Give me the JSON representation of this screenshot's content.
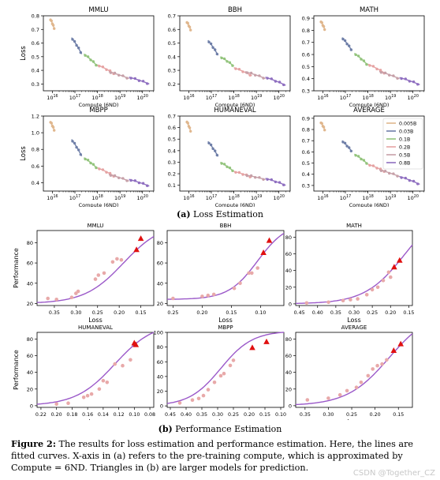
{
  "chart_data": {
    "loss_estimation": {
      "type": "line",
      "sublabel_tag": "(a)",
      "sublabel_text": "Loss Estimation",
      "xlabel": "Compute (6ND)",
      "ylabel": "Loss",
      "x_scale": "log",
      "legend": {
        "placement": "right",
        "entries": [
          {
            "name": "0.005B",
            "color": "#e0b78e"
          },
          {
            "name": "0.03B",
            "color": "#6f7fa8"
          },
          {
            "name": "0.1B",
            "color": "#93c47d"
          },
          {
            "name": "0.2B",
            "color": "#e6a3a3"
          },
          {
            "name": "0.5B",
            "color": "#c6a0a8"
          },
          {
            "name": "0.8B",
            "color": "#8f6fc0"
          }
        ]
      },
      "panels": [
        {
          "title": "MMLU",
          "ylim": [
            0.25,
            0.8
          ],
          "yticks": [
            "0.3",
            "0.4",
            "0.5",
            "0.6",
            "0.7",
            "0.8"
          ],
          "ytick_values": [
            0.3,
            0.4,
            0.5,
            0.6,
            0.7,
            0.8
          ],
          "segments": [
            [
              15.9,
              16.1,
              0.78,
              0.7
            ],
            [
              16.85,
              17.3,
              0.64,
              0.52
            ],
            [
              17.4,
              18.0,
              0.52,
              0.43
            ],
            [
              18.0,
              18.8,
              0.44,
              0.37
            ],
            [
              18.5,
              19.4,
              0.39,
              0.34
            ],
            [
              19.4,
              20.3,
              0.35,
              0.3
            ]
          ]
        },
        {
          "title": "BBH",
          "ylim": [
            0.15,
            0.7
          ],
          "yticks": [
            "0.2",
            "0.3",
            "0.4",
            "0.5",
            "0.6",
            "0.7"
          ],
          "ytick_values": [
            0.2,
            0.3,
            0.4,
            0.5,
            0.6,
            0.7
          ],
          "segments": [
            [
              15.9,
              16.1,
              0.66,
              0.59
            ],
            [
              16.85,
              17.3,
              0.52,
              0.41
            ],
            [
              17.4,
              18.0,
              0.4,
              0.33
            ],
            [
              18.0,
              18.8,
              0.32,
              0.26
            ],
            [
              18.5,
              19.4,
              0.29,
              0.24
            ],
            [
              19.4,
              20.3,
              0.25,
              0.19
            ]
          ]
        },
        {
          "title": "MATH",
          "ylim": [
            0.3,
            0.92
          ],
          "yticks": [
            "0.3",
            "0.4",
            "0.5",
            "0.6",
            "0.7",
            "0.8",
            "0.9"
          ],
          "ytick_values": [
            0.3,
            0.4,
            0.5,
            0.6,
            0.7,
            0.8,
            0.9
          ],
          "segments": [
            [
              15.9,
              16.1,
              0.88,
              0.8
            ],
            [
              16.85,
              17.3,
              0.74,
              0.63
            ],
            [
              17.4,
              18.0,
              0.61,
              0.51
            ],
            [
              18.0,
              18.8,
              0.52,
              0.44
            ],
            [
              18.5,
              19.4,
              0.46,
              0.4
            ],
            [
              19.4,
              20.3,
              0.41,
              0.35
            ]
          ]
        },
        {
          "title": "MBPP",
          "ylim": [
            0.3,
            1.2
          ],
          "yticks": [
            "0.4",
            "0.6",
            "0.8",
            "1.0",
            "1.2"
          ],
          "ytick_values": [
            0.4,
            0.6,
            0.8,
            1.0,
            1.2
          ],
          "segments": [
            [
              15.9,
              16.1,
              1.14,
              1.02
            ],
            [
              16.85,
              17.3,
              0.92,
              0.72
            ],
            [
              17.4,
              18.0,
              0.7,
              0.57
            ],
            [
              18.0,
              18.8,
              0.58,
              0.47
            ],
            [
              18.5,
              19.4,
              0.5,
              0.42
            ],
            [
              19.4,
              20.3,
              0.44,
              0.36
            ]
          ]
        },
        {
          "title": "HUMANEVAL",
          "ylim": [
            0.05,
            0.7
          ],
          "yticks": [
            "0.1",
            "0.2",
            "0.3",
            "0.4",
            "0.5",
            "0.6",
            "0.7"
          ],
          "ytick_values": [
            0.1,
            0.2,
            0.3,
            0.4,
            0.5,
            0.6,
            0.7
          ],
          "segments": [
            [
              15.9,
              16.1,
              0.66,
              0.56
            ],
            [
              16.85,
              17.3,
              0.48,
              0.35
            ],
            [
              17.4,
              18.0,
              0.3,
              0.22
            ],
            [
              18.0,
              18.8,
              0.22,
              0.17
            ],
            [
              18.5,
              19.4,
              0.19,
              0.15
            ],
            [
              19.4,
              20.3,
              0.16,
              0.1
            ]
          ]
        },
        {
          "title": "AVERAGE",
          "ylim": [
            0.25,
            0.92
          ],
          "yticks": [
            "0.3",
            "0.4",
            "0.5",
            "0.6",
            "0.7",
            "0.8",
            "0.9"
          ],
          "ytick_values": [
            0.3,
            0.4,
            0.5,
            0.6,
            0.7,
            0.8,
            0.9
          ],
          "segments": [
            [
              15.9,
              16.1,
              0.87,
              0.79
            ],
            [
              16.85,
              17.3,
              0.7,
              0.6
            ],
            [
              17.4,
              18.0,
              0.58,
              0.49
            ],
            [
              18.0,
              18.8,
              0.49,
              0.42
            ],
            [
              18.5,
              19.4,
              0.44,
              0.38
            ],
            [
              19.4,
              20.3,
              0.38,
              0.31
            ]
          ]
        }
      ],
      "xticks": [
        {
          "value": 16,
          "base": "10",
          "exp": "16"
        },
        {
          "value": 17,
          "base": "10",
          "exp": "17"
        },
        {
          "value": 18,
          "base": "10",
          "exp": "18"
        },
        {
          "value": 19,
          "base": "10",
          "exp": "19"
        },
        {
          "value": 20,
          "base": "10",
          "exp": "20"
        }
      ],
      "xlim": [
        15.6,
        20.5
      ]
    },
    "performance_estimation": {
      "type": "scatter",
      "sublabel_tag": "(b)",
      "sublabel_text": "Performance Estimation",
      "xlabel": "Loss",
      "ylabel": "Performance",
      "x_inverted": true,
      "fit_color": "#9b59c9",
      "point_color": "#e8a9a9",
      "triangle_color": "#e01010",
      "panels": [
        {
          "title": "MMLU",
          "xlim": [
            0.39,
            0.12
          ],
          "ylim": [
            18,
            92
          ],
          "xticks": [
            0.35,
            0.3,
            0.25,
            0.2,
            0.15
          ],
          "xtick_labels": [
            "0.35",
            "0.30",
            "0.25",
            "0.20",
            "0.15"
          ],
          "yticks": [
            20,
            40,
            60,
            80
          ],
          "ytick_labels": [
            "20",
            "40",
            "60",
            "80"
          ],
          "fit": {
            "base": 20,
            "top": 100,
            "mid": 0.19,
            "scale": 0.045
          },
          "points": [
            [
              0.365,
              25
            ],
            [
              0.345,
              24
            ],
            [
              0.31,
              26
            ],
            [
              0.3,
              30
            ],
            [
              0.295,
              32
            ],
            [
              0.255,
              44
            ],
            [
              0.248,
              48
            ],
            [
              0.235,
              50
            ],
            [
              0.215,
              61
            ],
            [
              0.205,
              64
            ],
            [
              0.195,
              63
            ]
          ],
          "triangles": [
            [
              0.16,
              73
            ],
            [
              0.15,
              84
            ]
          ]
        },
        {
          "title": "BBH",
          "xlim": [
            0.26,
            0.06
          ],
          "ylim": [
            18,
            92
          ],
          "xticks": [
            0.25,
            0.2,
            0.15,
            0.1
          ],
          "xtick_labels": [
            "0.25",
            "0.20",
            "0.15",
            "0.10"
          ],
          "yticks": [
            20,
            40,
            60,
            80
          ],
          "ytick_labels": [
            "20",
            "40",
            "60",
            "80"
          ],
          "fit": {
            "base": 24,
            "top": 100,
            "mid": 0.105,
            "scale": 0.025
          },
          "points": [
            [
              0.25,
              25
            ],
            [
              0.2,
              27
            ],
            [
              0.19,
              28
            ],
            [
              0.18,
              29
            ],
            [
              0.145,
              35
            ],
            [
              0.135,
              40
            ],
            [
              0.12,
              50
            ],
            [
              0.115,
              50
            ],
            [
              0.105,
              55
            ]
          ],
          "triangles": [
            [
              0.095,
              70
            ],
            [
              0.085,
              82
            ]
          ]
        },
        {
          "title": "MATH",
          "xlim": [
            0.46,
            0.14
          ],
          "ylim": [
            -2,
            88
          ],
          "xticks": [
            0.45,
            0.4,
            0.35,
            0.3,
            0.25,
            0.2,
            0.15
          ],
          "xtick_labels": [
            "0.45",
            "0.40",
            "0.35",
            "0.30",
            "0.25",
            "0.20",
            "0.15"
          ],
          "yticks": [
            0,
            20,
            40,
            60,
            80
          ],
          "ytick_labels": [
            "0",
            "20",
            "40",
            "60",
            "80"
          ],
          "fit": {
            "base": 0,
            "top": 120,
            "mid": 0.16,
            "scale": 0.055
          },
          "points": [
            [
              0.43,
              1
            ],
            [
              0.37,
              2
            ],
            [
              0.33,
              4
            ],
            [
              0.31,
              5
            ],
            [
              0.29,
              6
            ],
            [
              0.265,
              11
            ],
            [
              0.25,
              17
            ],
            [
              0.235,
              20
            ],
            [
              0.22,
              28
            ],
            [
              0.205,
              38
            ],
            [
              0.2,
              32
            ]
          ],
          "triangles": [
            [
              0.19,
              44
            ],
            [
              0.175,
              52
            ]
          ]
        },
        {
          "title": "HUMANEVAL",
          "xlim": [
            0.225,
            0.075
          ],
          "ylim": [
            -2,
            88
          ],
          "xticks": [
            0.22,
            0.2,
            0.18,
            0.16,
            0.14,
            0.12,
            0.1,
            0.08
          ],
          "xtick_labels": [
            "0.22",
            "0.20",
            "0.18",
            "0.16",
            "0.14",
            "0.12",
            "0.10",
            "0.08"
          ],
          "yticks": [
            0,
            20,
            40,
            60,
            80
          ],
          "ytick_labels": [
            "0",
            "20",
            "40",
            "60",
            "80"
          ],
          "fit": {
            "base": 0,
            "top": 100,
            "mid": 0.125,
            "scale": 0.025
          },
          "points": [
            [
              0.2,
              2
            ],
            [
              0.185,
              3
            ],
            [
              0.165,
              10
            ],
            [
              0.16,
              12
            ],
            [
              0.155,
              14
            ],
            [
              0.145,
              20
            ],
            [
              0.14,
              30
            ],
            [
              0.135,
              28
            ],
            [
              0.125,
              50
            ],
            [
              0.115,
              48
            ],
            [
              0.105,
              55
            ]
          ],
          "triangles": [
            [
              0.1,
              75
            ],
            [
              0.098,
              73
            ]
          ]
        },
        {
          "title": "MBPP",
          "xlim": [
            0.46,
            0.09
          ],
          "ylim": [
            -2,
            100
          ],
          "xticks": [
            0.45,
            0.4,
            0.35,
            0.3,
            0.25,
            0.2,
            0.15,
            0.1
          ],
          "xtick_labels": [
            "0.45",
            "0.40",
            "0.35",
            "0.30",
            "0.25",
            "0.20",
            "0.15",
            "0.10"
          ],
          "yticks": [
            0,
            20,
            40,
            60,
            80,
            100
          ],
          "ytick_labels": [
            "0",
            "20",
            "40",
            "60",
            "80",
            "100"
          ],
          "fit": {
            "base": 0,
            "top": 102,
            "mid": 0.29,
            "scale": 0.05
          },
          "points": [
            [
              0.42,
              4
            ],
            [
              0.38,
              8
            ],
            [
              0.36,
              10
            ],
            [
              0.345,
              14
            ],
            [
              0.33,
              22
            ],
            [
              0.31,
              32
            ],
            [
              0.29,
              41
            ],
            [
              0.28,
              44
            ],
            [
              0.26,
              55
            ],
            [
              0.25,
              62
            ]
          ],
          "triangles": [
            [
              0.19,
              79
            ],
            [
              0.145,
              87
            ]
          ]
        },
        {
          "title": "AVERAGE",
          "xlim": [
            0.37,
            0.12
          ],
          "ylim": [
            -2,
            88
          ],
          "xticks": [
            0.35,
            0.3,
            0.25,
            0.2,
            0.15
          ],
          "xtick_labels": [
            "0.35",
            "0.30",
            "0.25",
            "0.20",
            "0.15"
          ],
          "yticks": [
            0,
            20,
            40,
            60,
            80
          ],
          "ytick_labels": [
            "0",
            "20",
            "40",
            "60",
            "80"
          ],
          "fit": {
            "base": 0,
            "top": 115,
            "mid": 0.17,
            "scale": 0.045
          },
          "points": [
            [
              0.345,
              7
            ],
            [
              0.3,
              9
            ],
            [
              0.275,
              13
            ],
            [
              0.26,
              18
            ],
            [
              0.24,
              22
            ],
            [
              0.23,
              28
            ],
            [
              0.215,
              36
            ],
            [
              0.205,
              44
            ],
            [
              0.195,
              48
            ],
            [
              0.185,
              50
            ],
            [
              0.175,
              55
            ]
          ],
          "triangles": [
            [
              0.16,
              66
            ],
            [
              0.145,
              74
            ]
          ]
        }
      ]
    }
  },
  "caption": {
    "label": "Figure 2:",
    "text": " The results for loss estimation and performance estimation. Here, the lines are fitted curves. X-axis in (a) refers to the pre-training compute, which is approximated by Compute = 6ND. Triangles in (b) are larger models for prediction."
  },
  "watermark": "CSDN @Together_CZ"
}
